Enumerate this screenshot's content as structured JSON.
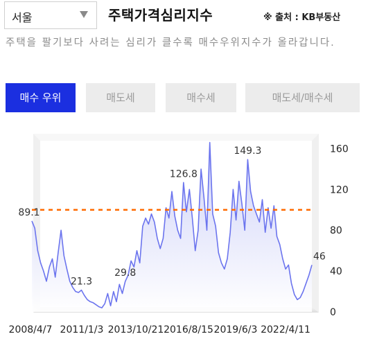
{
  "region": {
    "selected": "서울"
  },
  "header": {
    "title": "주택가격심리지수",
    "source": "※ 출처 : KB부동산"
  },
  "description": "주택을 팔기보다 사려는 심리가 클수록 매수우위지수가 올라갑니다.",
  "tabs": [
    {
      "label": "매수 우위",
      "active": true
    },
    {
      "label": "매도세",
      "active": false
    },
    {
      "label": "매수세",
      "active": false
    },
    {
      "label": "매도세/매수세",
      "active": false
    }
  ],
  "colors": {
    "accent": "#1b2fe0",
    "line": "#6b74ee",
    "area_top": "#c6caf7",
    "reference": "#ff6a00"
  },
  "chart_data": {
    "type": "area",
    "title": "",
    "xlabel": "",
    "ylabel": "",
    "x_tick_labels": [
      "2008/4/7",
      "2011/1/3",
      "2013/10/21",
      "2016/8/15",
      "2019/6/3",
      "2022/4/11"
    ],
    "y_ticks": [
      0,
      40,
      80,
      120,
      160
    ],
    "ylim": [
      0,
      180
    ],
    "reference_line": 100,
    "grid": false,
    "series": [
      {
        "values": [
          89.1,
          82,
          60,
          48,
          40,
          30,
          44,
          52,
          34,
          58,
          80,
          55,
          42,
          30,
          24,
          20,
          19,
          21.3,
          16,
          12,
          10,
          9,
          7,
          5,
          4,
          8,
          18,
          6,
          20,
          10,
          27,
          18,
          29.8,
          36,
          50,
          44,
          60,
          48,
          84,
          92,
          86,
          96,
          88,
          72,
          62,
          72,
          102,
          92,
          118,
          94,
          80,
          72,
          126.8,
          98,
          120,
          92,
          60,
          80,
          140,
          112,
          80,
          166,
          96,
          84,
          58,
          48,
          42,
          52,
          78,
          120,
          90,
          128,
          106,
          80,
          149.3,
          118,
          104,
          96,
          88,
          110,
          78,
          102,
          82,
          104,
          74,
          66,
          52,
          42,
          46,
          28,
          17,
          12,
          14,
          20,
          28,
          36,
          46
        ]
      }
    ],
    "data_labels": [
      {
        "index": 0,
        "text": "89.1"
      },
      {
        "index": 17,
        "text": "21.3"
      },
      {
        "index": 32,
        "text": "29.8"
      },
      {
        "index": 52,
        "text": "126.8"
      },
      {
        "index": 74,
        "text": "149.3"
      },
      {
        "index": 96,
        "text": "46"
      }
    ]
  }
}
